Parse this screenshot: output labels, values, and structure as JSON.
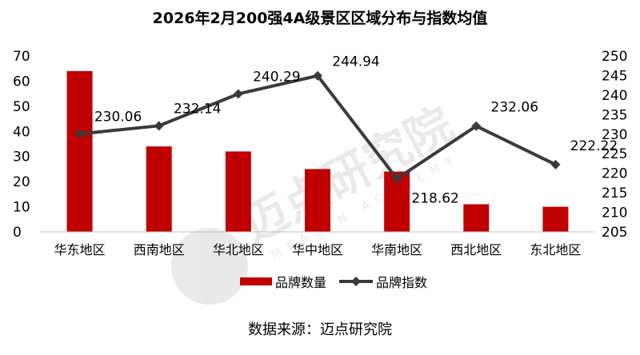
{
  "chart_data": {
    "type": "bar",
    "title": "2026年2月200强4A级景区区域分布与指数均值",
    "categories": [
      "华东地区",
      "西南地区",
      "华北地区",
      "华中地区",
      "华南地区",
      "西北地区",
      "东北地区"
    ],
    "series": [
      {
        "name": "品牌数量",
        "type": "bar",
        "axis": "left",
        "values": [
          64,
          34,
          32,
          25,
          24,
          11,
          10
        ]
      },
      {
        "name": "品牌指数",
        "type": "line",
        "axis": "right",
        "values": [
          230.06,
          232.14,
          240.29,
          244.94,
          218.62,
          232.06,
          222.22
        ]
      }
    ],
    "left_axis": {
      "ylim": [
        0,
        70
      ],
      "ticks": [
        "0",
        "10",
        "20",
        "30",
        "40",
        "50",
        "60",
        "70"
      ]
    },
    "right_axis": {
      "ylim": [
        205,
        250
      ],
      "ticks": [
        "205",
        "210",
        "215",
        "220",
        "225",
        "230",
        "235",
        "240",
        "245",
        "250"
      ]
    },
    "legend_position": "bottom",
    "grid": false,
    "colors": {
      "bar": "#c00000",
      "line": "#3a3a3a"
    }
  },
  "source": "数据来源：迈点研究院",
  "watermark": {
    "text": "迈点研究院",
    "sub": "MEADIN ACADEMY"
  }
}
